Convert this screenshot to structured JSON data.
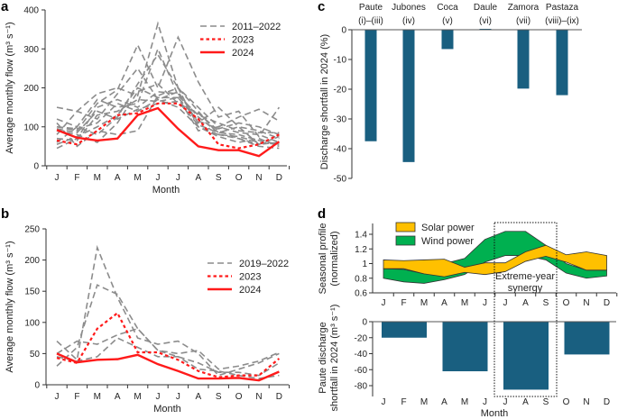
{
  "colors": {
    "dashed": "#8c8c8c",
    "red": "#ff1a1a",
    "bar": "#195f80",
    "solar": "#ffc000",
    "wind": "#00b050"
  },
  "chart_data": [
    {
      "panel": "a",
      "type": "line",
      "xlabel": "Month",
      "ylabel": "Average monthly flow (m³ s⁻¹)",
      "ylim": [
        0,
        400
      ],
      "yticks": [
        0,
        100,
        200,
        300,
        400
      ],
      "categories": [
        "J",
        "F",
        "M",
        "A",
        "M",
        "J",
        "J",
        "A",
        "S",
        "O",
        "N",
        "D"
      ],
      "legend_placement": "top-right",
      "series": [
        {
          "name": "2011–2022",
          "style": "dashed",
          "values": [
            [
              150,
              140,
              185,
              200,
              180,
              365,
              200,
              150,
              100,
              125,
              145,
              115
            ],
            [
              100,
              90,
              160,
              195,
              310,
              200,
              330,
              215,
              125,
              140,
              75,
              150
            ],
            [
              120,
              100,
              170,
              150,
              160,
              300,
              180,
              130,
              110,
              90,
              85,
              85
            ],
            [
              80,
              140,
              120,
              185,
              250,
              170,
              190,
              110,
              150,
              100,
              55,
              60
            ],
            [
              55,
              75,
              100,
              130,
              200,
              175,
              175,
              90,
              100,
              85,
              80,
              60
            ],
            [
              90,
              80,
              60,
              110,
              190,
              210,
              160,
              135,
              90,
              70,
              50,
              45
            ],
            [
              45,
              70,
              150,
              170,
              150,
              190,
              185,
              125,
              85,
              100,
              90,
              70
            ],
            [
              110,
              50,
              90,
              80,
              90,
              180,
              200,
              100,
              80,
              75,
              60,
              55
            ],
            [
              100,
              95,
              110,
              160,
              140,
              170,
              150,
              100,
              75,
              60,
              70,
              50
            ],
            [
              70,
              65,
              130,
              140,
              170,
              165,
              175,
              115,
              95,
              110,
              100,
              80
            ],
            [
              60,
              100,
              80,
              125,
              210,
              285,
              200,
              140,
              80,
              70,
              55,
              75
            ],
            [
              95,
              85,
              140,
              120,
              145,
              160,
              165,
              105,
              85,
              80,
              65,
              55
            ]
          ]
        },
        {
          "name": "2023",
          "style": "dotted",
          "values": [
            65,
            55,
            90,
            130,
            135,
            160,
            160,
            120,
            55,
            45,
            55,
            80
          ]
        },
        {
          "name": "2024",
          "style": "solid",
          "values": [
            92,
            72,
            65,
            70,
            130,
            148,
            95,
            50,
            40,
            40,
            25,
            62
          ]
        }
      ]
    },
    {
      "panel": "b",
      "type": "line",
      "xlabel": "Month",
      "ylabel": "Average monthly flow (m³ s⁻¹)",
      "ylim": [
        0,
        250
      ],
      "yticks": [
        0,
        50,
        100,
        150,
        200,
        250
      ],
      "categories": [
        "J",
        "F",
        "M",
        "A",
        "M",
        "J",
        "J",
        "A",
        "S",
        "O",
        "N",
        "D"
      ],
      "legend_placement": "top-right",
      "series": [
        {
          "name": "2019–2022",
          "style": "dashed",
          "values": [
            [
              70,
              40,
              220,
              140,
              75,
              65,
              70,
              50,
              15,
              25,
              35,
              50
            ],
            [
              30,
              60,
              160,
              145,
              90,
              55,
              50,
              55,
              25,
              30,
              38,
              52
            ],
            [
              50,
              70,
              65,
              80,
              90,
              55,
              45,
              35,
              20,
              20,
              15,
              35
            ],
            [
              45,
              38,
              45,
              75,
              60,
              45,
              45,
              25,
              22,
              15,
              10,
              15
            ]
          ]
        },
        {
          "name": "2023",
          "style": "dotted",
          "values": [
            43,
            35,
            90,
            115,
            52,
            52,
            40,
            22,
            12,
            15,
            15,
            42
          ]
        },
        {
          "name": "2024",
          "style": "solid",
          "values": [
            50,
            36,
            40,
            41,
            48,
            33,
            22,
            10,
            10,
            11,
            7,
            21
          ]
        }
      ]
    },
    {
      "panel": "c",
      "type": "bar",
      "ylabel": "Discharge shortfall in 2024 (%)",
      "ylim": [
        -50,
        0
      ],
      "yticks": [
        0,
        -10,
        -20,
        -30,
        -40,
        -50
      ],
      "categories": [
        {
          "name": "Paute",
          "code": "(i)–(iii)"
        },
        {
          "name": "Jubones",
          "code": "(iv)"
        },
        {
          "name": "Coca",
          "code": "(v)"
        },
        {
          "name": "Daule",
          "code": "(vi)"
        },
        {
          "name": "Zamora",
          "code": "(vii)"
        },
        {
          "name": "Pastaza",
          "code": "(viii)–(ix)"
        }
      ],
      "values": [
        -37.5,
        -44.5,
        -6.5,
        0.3,
        -19.8,
        -22
      ]
    },
    {
      "panel": "d",
      "type": "area",
      "ylabel": [
        "Seasonal profile",
        "(normalized)"
      ],
      "ylim": [
        0.6,
        1.5
      ],
      "yticks": [
        0.6,
        0.8,
        1.0,
        1.2,
        1.4
      ],
      "categories": [
        "J",
        "F",
        "M",
        "A",
        "M",
        "J",
        "J",
        "A",
        "S",
        "O",
        "N",
        "D"
      ],
      "legend_placement": "top-left",
      "series": [
        {
          "name": "Wind power",
          "upper": [
            0.93,
            0.92,
            0.86,
            1.0,
            1.07,
            1.33,
            1.44,
            1.44,
            1.25,
            1.0,
            0.91,
            0.91
          ],
          "lower": [
            0.8,
            0.75,
            0.73,
            0.78,
            0.85,
            1.02,
            1.11,
            1.11,
            1.05,
            0.87,
            0.8,
            0.83
          ]
        },
        {
          "name": "Solar power",
          "upper": [
            1.05,
            1.04,
            1.05,
            1.06,
            0.95,
            1.01,
            1.01,
            1.16,
            1.25,
            1.12,
            1.16,
            1.11
          ],
          "lower": [
            0.93,
            0.93,
            0.86,
            0.82,
            0.88,
            0.85,
            0.89,
            1.03,
            1.1,
            1.02,
            0.91,
            0.91
          ]
        }
      ],
      "annotation": [
        "Extreme-year",
        "synergy"
      ],
      "annotation_months": [
        "J",
        "A",
        "S"
      ]
    },
    {
      "panel": "d",
      "type": "bar",
      "xlabel": "Month",
      "ylabel": [
        "Paute discharge",
        "shortfall in 2024 (m³ s⁻¹)"
      ],
      "ylim": [
        -90,
        0
      ],
      "yticks": [
        0,
        -20,
        -40,
        -60,
        -80
      ],
      "categories": [
        "J",
        "F",
        "M",
        "A",
        "M",
        "J",
        "J",
        "A",
        "S",
        "O",
        "N",
        "D"
      ],
      "bars": [
        {
          "months": "J–M",
          "value": -20
        },
        {
          "months": "A–J",
          "value": -62
        },
        {
          "months": "J–S",
          "value": -85
        },
        {
          "months": "O–D",
          "value": -41
        }
      ]
    }
  ]
}
